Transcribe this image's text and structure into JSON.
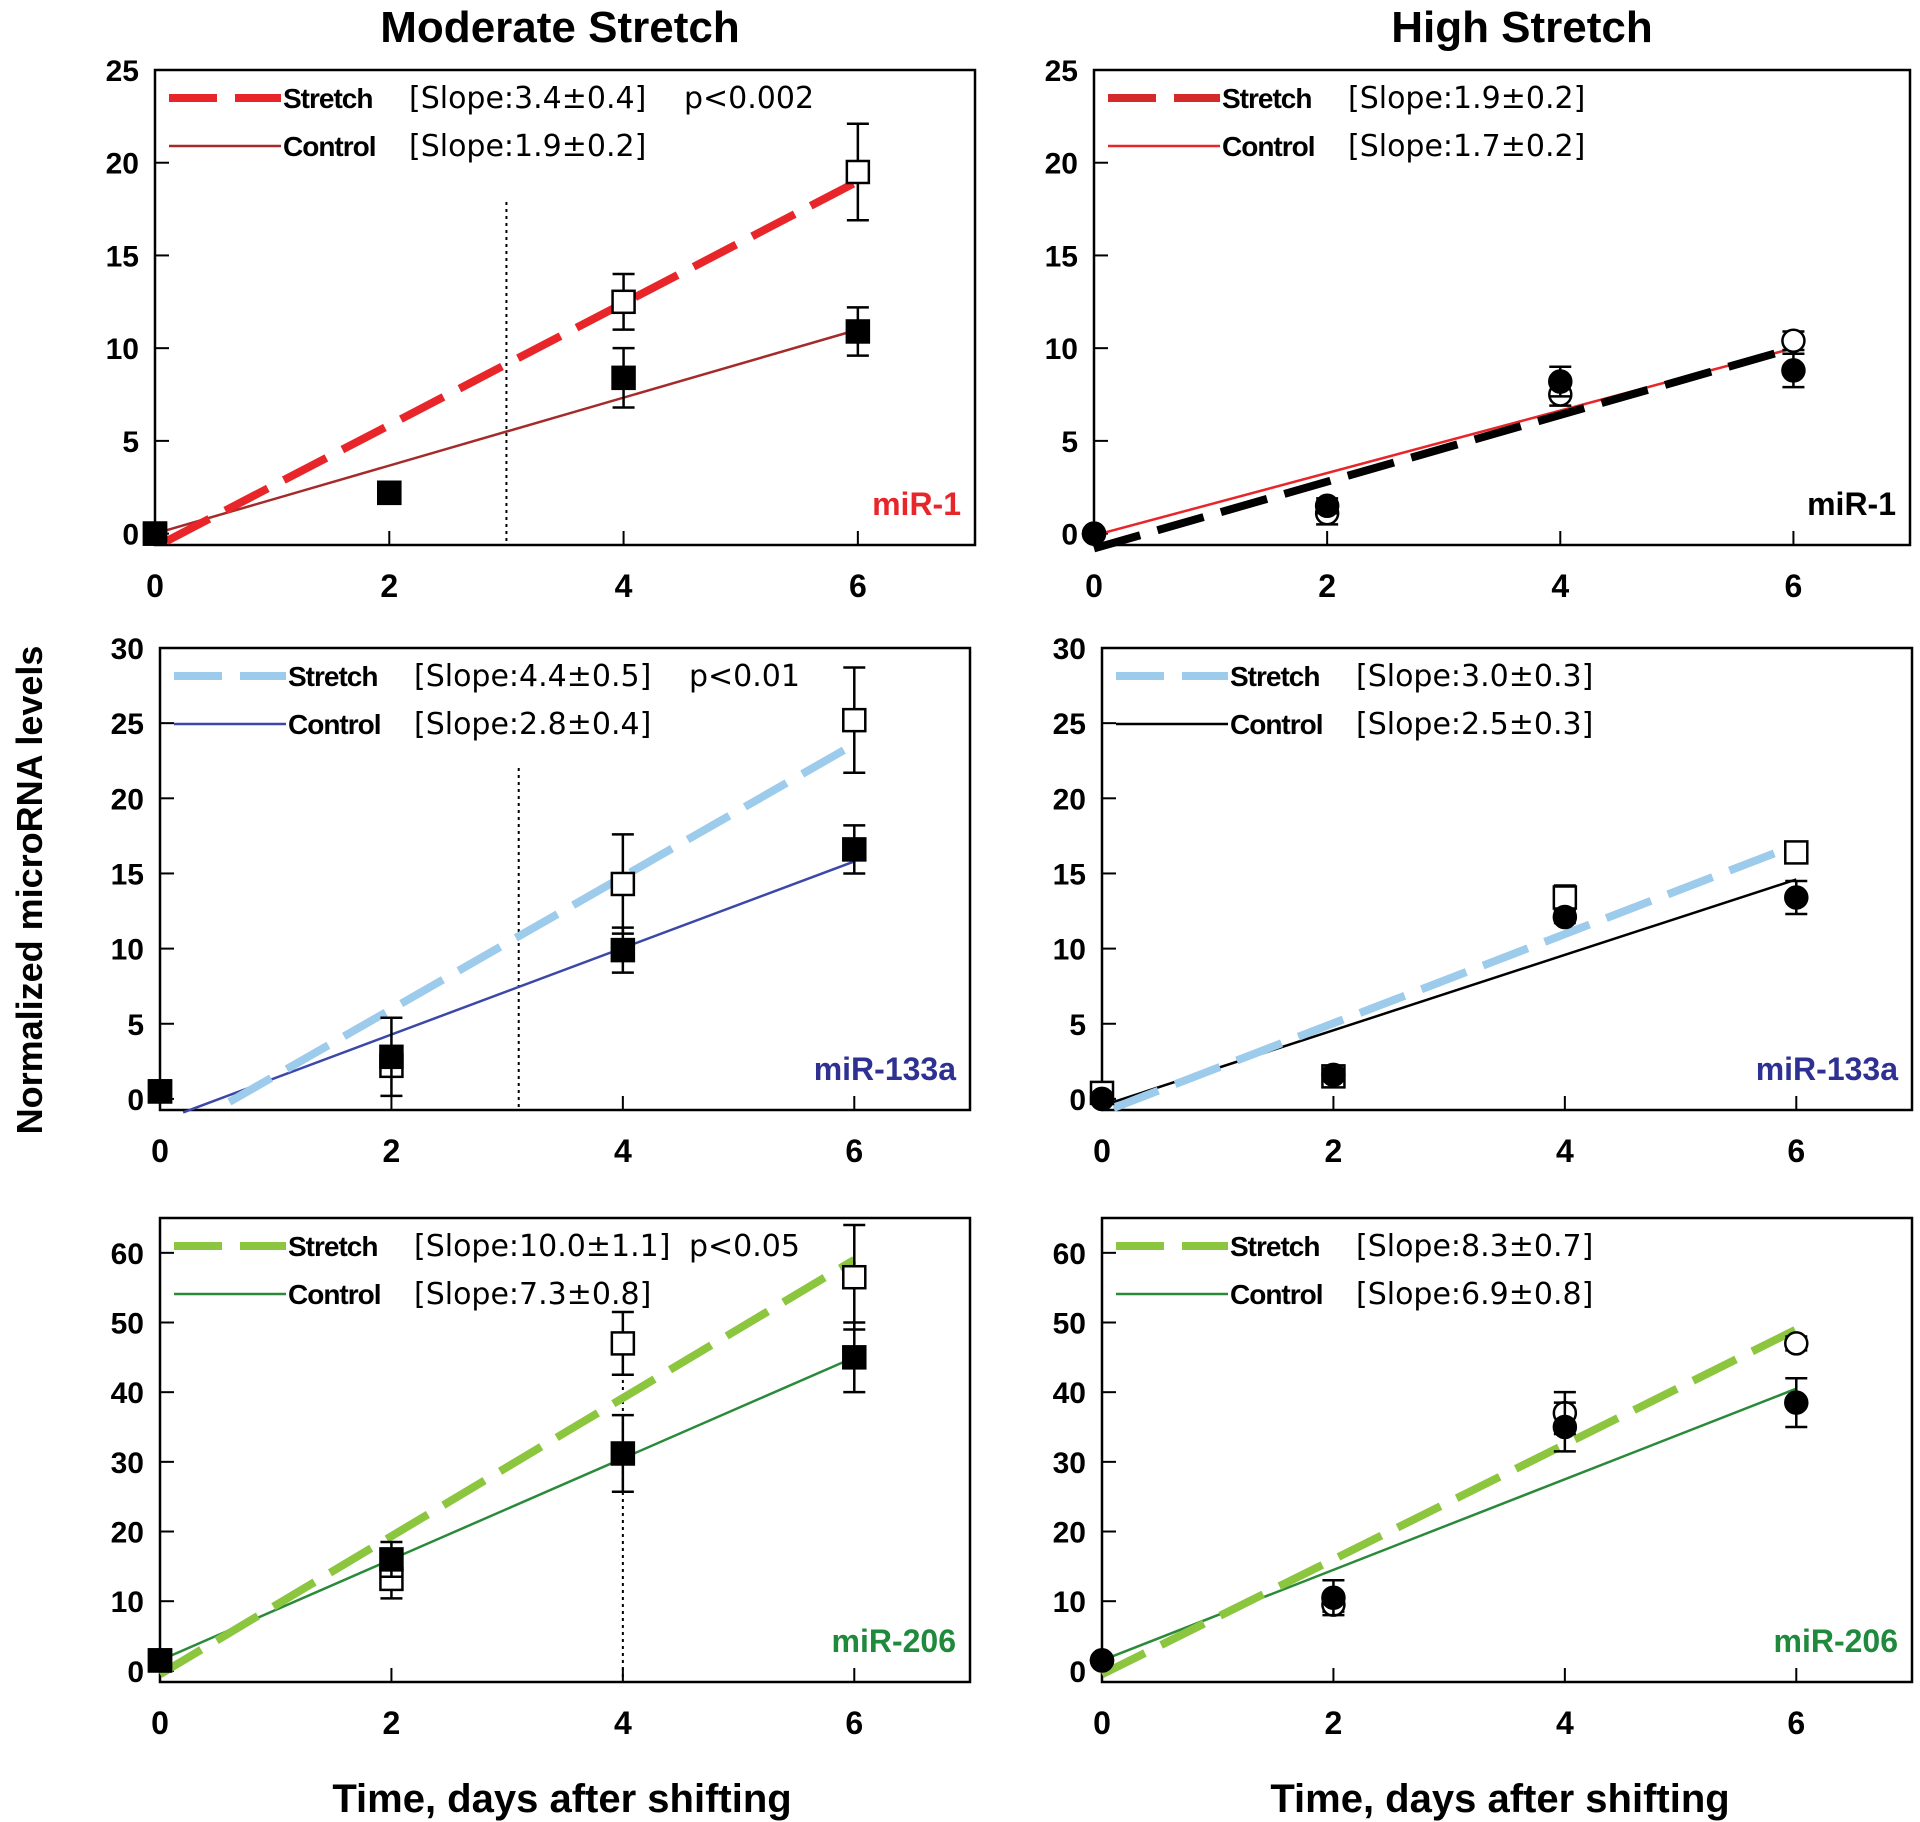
{
  "figure": {
    "col_titles": [
      "Moderate Stretch",
      "High Stretch"
    ],
    "ylabel": "Normalized microRNA levels",
    "xlabel": "Time, days after shifting"
  },
  "chart_data": [
    {
      "type": "scatter",
      "title": "Moderate Stretch",
      "mirna": "miR-1",
      "mirna_color": "#e8262a",
      "xlim": [
        0,
        7
      ],
      "ylim": [
        0,
        25
      ],
      "xticks": [
        0,
        2,
        4,
        6
      ],
      "yticks": [
        0,
        5,
        10,
        15,
        20,
        25
      ],
      "ylabel": "Normalized microRNA levels",
      "xlabel": "Time, days after shifting",
      "marker": "square",
      "stretch_color": "#e8262a",
      "control_color": "#a52a2a",
      "stretch_label": "Stretch",
      "control_label": "Control",
      "stretch_slope": "[Slope:3.4±0.4]",
      "control_slope": "[Slope:1.9±0.2]",
      "pvalue": "p<0.002",
      "stretch_points": [
        {
          "x": 0,
          "y": 0,
          "err": 0
        },
        {
          "x": 2,
          "y": 2.2,
          "err": 0.4
        },
        {
          "x": 4,
          "y": 12.5,
          "err": 1.5
        },
        {
          "x": 6,
          "y": 19.5,
          "err": 2.6
        }
      ],
      "control_points": [
        {
          "x": 0,
          "y": 0,
          "err": 0
        },
        {
          "x": 2,
          "y": 2.2,
          "err": 0.4
        },
        {
          "x": 4,
          "y": 8.4,
          "err": 1.6
        },
        {
          "x": 6,
          "y": 10.9,
          "err": 1.3
        }
      ],
      "stretch_fit": [
        [
          0.1,
          -0.4
        ],
        [
          6,
          19
        ]
      ],
      "control_fit": [
        [
          0,
          0
        ],
        [
          6,
          11
        ]
      ],
      "vline": 3
    },
    {
      "type": "scatter",
      "title": "High Stretch",
      "mirna": "miR-1",
      "mirna_color": "#000000",
      "xlim": [
        0,
        7
      ],
      "ylim": [
        0,
        25
      ],
      "xticks": [
        0,
        2,
        4,
        6
      ],
      "yticks": [
        0,
        5,
        10,
        15,
        20,
        25
      ],
      "ylabel": "Normalized microRNA levels",
      "xlabel": "Time, days after shifting",
      "marker": "circle",
      "stretch_color": "#000000",
      "control_color": "#e8262a",
      "legend_stretch_color": "#d42a2a",
      "stretch_label": "Stretch",
      "control_label": "Control",
      "stretch_slope": "[Slope:1.9±0.2]",
      "control_slope": "[Slope:1.7±0.2]",
      "pvalue": "",
      "stretch_points": [
        {
          "x": 0,
          "y": 0,
          "err": 0
        },
        {
          "x": 2,
          "y": 1.1,
          "err": 0.6
        },
        {
          "x": 4,
          "y": 7.5,
          "err": 0.6
        },
        {
          "x": 6,
          "y": 10.4,
          "err": 0.5
        }
      ],
      "control_points": [
        {
          "x": 0,
          "y": 0,
          "err": 0
        },
        {
          "x": 2,
          "y": 1.5,
          "err": 0.4
        },
        {
          "x": 4,
          "y": 8.2,
          "err": 0.8
        },
        {
          "x": 6,
          "y": 8.8,
          "err": 0.9
        }
      ],
      "stretch_fit": [
        [
          0,
          -0.8
        ],
        [
          6,
          10
        ]
      ],
      "control_fit": [
        [
          0,
          -0.1
        ],
        [
          6,
          10
        ]
      ],
      "vline": null
    },
    {
      "type": "scatter",
      "title": "Moderate Stretch",
      "mirna": "miR-133a",
      "mirna_color": "#2e3192",
      "xlim": [
        0,
        7
      ],
      "ylim": [
        0,
        30
      ],
      "xticks": [
        0,
        2,
        4,
        6
      ],
      "yticks": [
        0,
        5,
        10,
        15,
        20,
        25,
        30
      ],
      "ylabel": "Normalized microRNA levels",
      "xlabel": "Time, days after shifting",
      "marker": "square",
      "stretch_color": "#9ccbec",
      "control_color": "#3b48a8",
      "stretch_label": "Stretch",
      "control_label": "Control",
      "stretch_slope": "[Slope:4.4±0.5]",
      "control_slope": "[Slope:2.8±0.4]",
      "pvalue": "p<0.01",
      "stretch_points": [
        {
          "x": 0,
          "y": 0.5,
          "err": 0
        },
        {
          "x": 2,
          "y": 2.2,
          "err": 0.5
        },
        {
          "x": 4,
          "y": 14.3,
          "err": 3.3
        },
        {
          "x": 6,
          "y": 25.2,
          "err": 3.5
        }
      ],
      "control_points": [
        {
          "x": 0,
          "y": 0.5,
          "err": 0
        },
        {
          "x": 2,
          "y": 2.8,
          "err": 2.6
        },
        {
          "x": 4,
          "y": 9.9,
          "err": 1.5
        },
        {
          "x": 6,
          "y": 16.6,
          "err": 1.6
        }
      ],
      "stretch_fit": [
        [
          0.6,
          -0.2
        ],
        [
          6,
          23.6
        ]
      ],
      "control_fit": [
        [
          0.2,
          -0.9
        ],
        [
          6,
          15.8
        ]
      ],
      "vline": 3.1
    },
    {
      "type": "scatter",
      "title": "High Stretch",
      "mirna": "miR-133a",
      "mirna_color": "#2e3192",
      "xlim": [
        0,
        7
      ],
      "ylim": [
        0,
        30
      ],
      "xticks": [
        0,
        2,
        4,
        6
      ],
      "yticks": [
        0,
        5,
        10,
        15,
        20,
        25,
        30
      ],
      "ylabel": "Normalized microRNA levels",
      "xlabel": "Time, days after shifting",
      "marker": "mixed",
      "stretch_color": "#9ccbec",
      "control_color": "#000000",
      "stretch_label": "Stretch",
      "control_label": "Control",
      "stretch_slope": "[Slope:3.0±0.3]",
      "control_slope": "[Slope:2.5±0.3]",
      "pvalue": "",
      "stretch_points": [
        {
          "x": 0,
          "y": 0.4,
          "err": 0
        },
        {
          "x": 2,
          "y": 1.5,
          "err": 0
        },
        {
          "x": 4,
          "y": 13.4,
          "err": 0.8
        },
        {
          "x": 6,
          "y": 16.4,
          "err": 0
        }
      ],
      "control_points": [
        {
          "x": 0,
          "y": 0,
          "err": 0
        },
        {
          "x": 2,
          "y": 1.6,
          "err": 0
        },
        {
          "x": 4,
          "y": 12.1,
          "err": 0.4
        },
        {
          "x": 6,
          "y": 13.4,
          "err": 1.1
        }
      ],
      "stretch_fit": [
        [
          0.1,
          -0.6
        ],
        [
          6,
          16.9
        ]
      ],
      "control_fit": [
        [
          0.1,
          -0.2
        ],
        [
          6,
          14.6
        ]
      ],
      "vline": null
    },
    {
      "type": "scatter",
      "title": "Moderate Stretch",
      "mirna": "miR-206",
      "mirna_color": "#1f8a3c",
      "xlim": [
        0,
        7
      ],
      "ylim": [
        0,
        65
      ],
      "xticks": [
        0,
        2,
        4,
        6
      ],
      "yticks": [
        0,
        10,
        20,
        30,
        40,
        50,
        60
      ],
      "ylabel": "Normalized microRNA levels",
      "xlabel": "Time, days after shifting",
      "marker": "square",
      "stretch_color": "#8cc63f",
      "control_color": "#2a8a3a",
      "stretch_label": "Stretch",
      "control_label": "Control",
      "stretch_slope": "[Slope:10.0±1.1]",
      "control_slope": "[Slope:7.3±0.8]",
      "pvalue": "p<0.05",
      "stretch_points": [
        {
          "x": 0,
          "y": 1.5,
          "err": 0
        },
        {
          "x": 2,
          "y": 13.2,
          "err": 2.8
        },
        {
          "x": 4,
          "y": 47,
          "err": 4.5
        },
        {
          "x": 6,
          "y": 56.5,
          "err": 7.5
        }
      ],
      "control_points": [
        {
          "x": 0,
          "y": 1.5,
          "err": 0
        },
        {
          "x": 2,
          "y": 16,
          "err": 2.5
        },
        {
          "x": 4,
          "y": 31.2,
          "err": 5.5
        },
        {
          "x": 6,
          "y": 45,
          "err": 5
        }
      ],
      "stretch_fit": [
        [
          0,
          -0.5
        ],
        [
          6,
          59
        ]
      ],
      "control_fit": [
        [
          0,
          1.5
        ],
        [
          6,
          45
        ]
      ],
      "vline": 4
    },
    {
      "type": "scatter",
      "title": "High Stretch",
      "mirna": "miR-206",
      "mirna_color": "#1f8a3c",
      "xlim": [
        0,
        7
      ],
      "ylim": [
        0,
        65
      ],
      "xticks": [
        0,
        2,
        4,
        6
      ],
      "yticks": [
        0,
        10,
        20,
        30,
        40,
        50,
        60
      ],
      "ylabel": "Normalized microRNA levels",
      "xlabel": "Time, days after shifting",
      "marker": "circle",
      "stretch_color": "#8cc63f",
      "control_color": "#2a8a3a",
      "stretch_label": "Stretch",
      "control_label": "Control",
      "stretch_slope": "[Slope:8.3±0.7]",
      "control_slope": "[Slope:6.9±0.8]",
      "pvalue": "",
      "stretch_points": [
        {
          "x": 0,
          "y": 1.5,
          "err": 0
        },
        {
          "x": 2,
          "y": 9.5,
          "err": 1
        },
        {
          "x": 4,
          "y": 37,
          "err": 3
        },
        {
          "x": 6,
          "y": 47,
          "err": 1
        }
      ],
      "control_points": [
        {
          "x": 0,
          "y": 1.5,
          "err": 0
        },
        {
          "x": 2,
          "y": 10.5,
          "err": 2.5
        },
        {
          "x": 4,
          "y": 35,
          "err": 3.5
        },
        {
          "x": 6,
          "y": 38.5,
          "err": 3.5
        }
      ],
      "stretch_fit": [
        [
          0,
          -0.5
        ],
        [
          6,
          49
        ]
      ],
      "control_fit": [
        [
          0,
          1.5
        ],
        [
          6,
          40.5
        ]
      ],
      "vline": null
    }
  ]
}
